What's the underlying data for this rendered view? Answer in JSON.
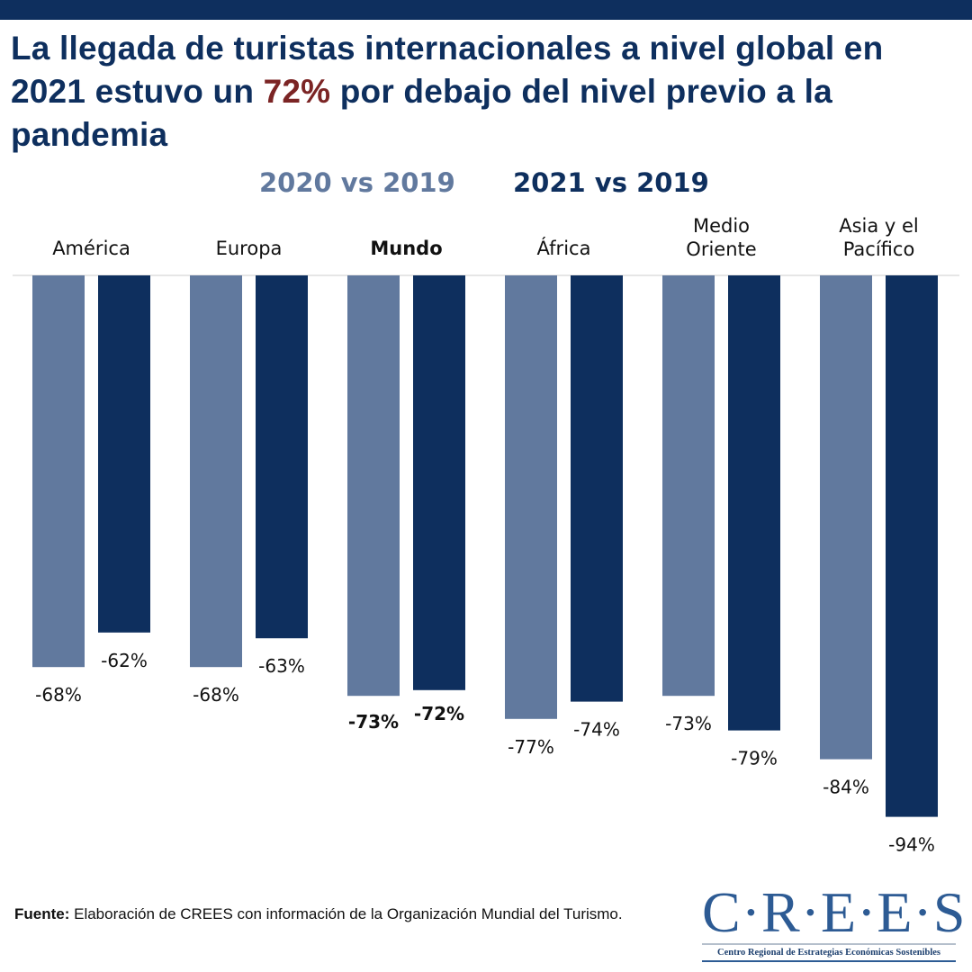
{
  "header": {
    "title_part1": "La llegada de turistas internacionales a nivel global en 2021 estuvo un ",
    "title_highlight": "72%",
    "title_part2": " por debajo del nivel previo a la pandemia"
  },
  "colors": {
    "series_2020": "#61799e",
    "series_2021": "#0e2f5e",
    "highlight": "#7b2424",
    "topbar": "#0e2f5e"
  },
  "legend": {
    "series_2020": "2020 vs 2019",
    "series_2021": "2021 vs 2019"
  },
  "chart_data": {
    "type": "bar",
    "title": "La llegada de turistas internacionales a nivel global en 2021 estuvo un 72% por debajo del nivel previo a la pandemia",
    "xlabel": "",
    "ylabel": "",
    "categories": [
      "América",
      "Europa",
      "Mundo",
      "África",
      "Medio Oriente",
      "Asia y el Pacífico"
    ],
    "category_lines": [
      [
        "América"
      ],
      [
        "Europa"
      ],
      [
        "Mundo"
      ],
      [
        "África"
      ],
      [
        "Medio",
        "Oriente"
      ],
      [
        "Asia y el",
        "Pacífico"
      ]
    ],
    "bold_category": "Mundo",
    "series": [
      {
        "name": "2020 vs 2019",
        "values": [
          -68,
          -68,
          -73,
          -77,
          -73,
          -84
        ],
        "labels": [
          "-68%",
          "-68%",
          "-73%",
          "-77%",
          "-73%",
          "-84%"
        ]
      },
      {
        "name": "2021 vs 2019",
        "values": [
          -62,
          -63,
          -72,
          -74,
          -79,
          -94
        ],
        "labels": [
          "-62%",
          "-63%",
          "-72%",
          "-74%",
          "-79%",
          "-94%"
        ]
      }
    ],
    "ylim": [
      -100,
      0
    ],
    "grid": false,
    "legend_position": "top-center",
    "value_unit": "%"
  },
  "footer": {
    "source_label": "Fuente:",
    "source_text": " Elaboración de CREES con información de la Organización Mundial del Turismo."
  },
  "logo": {
    "mark": "C·R·E·E·S",
    "subtitle": "Centro Regional de Estrategias Económicas Sostenibles"
  }
}
